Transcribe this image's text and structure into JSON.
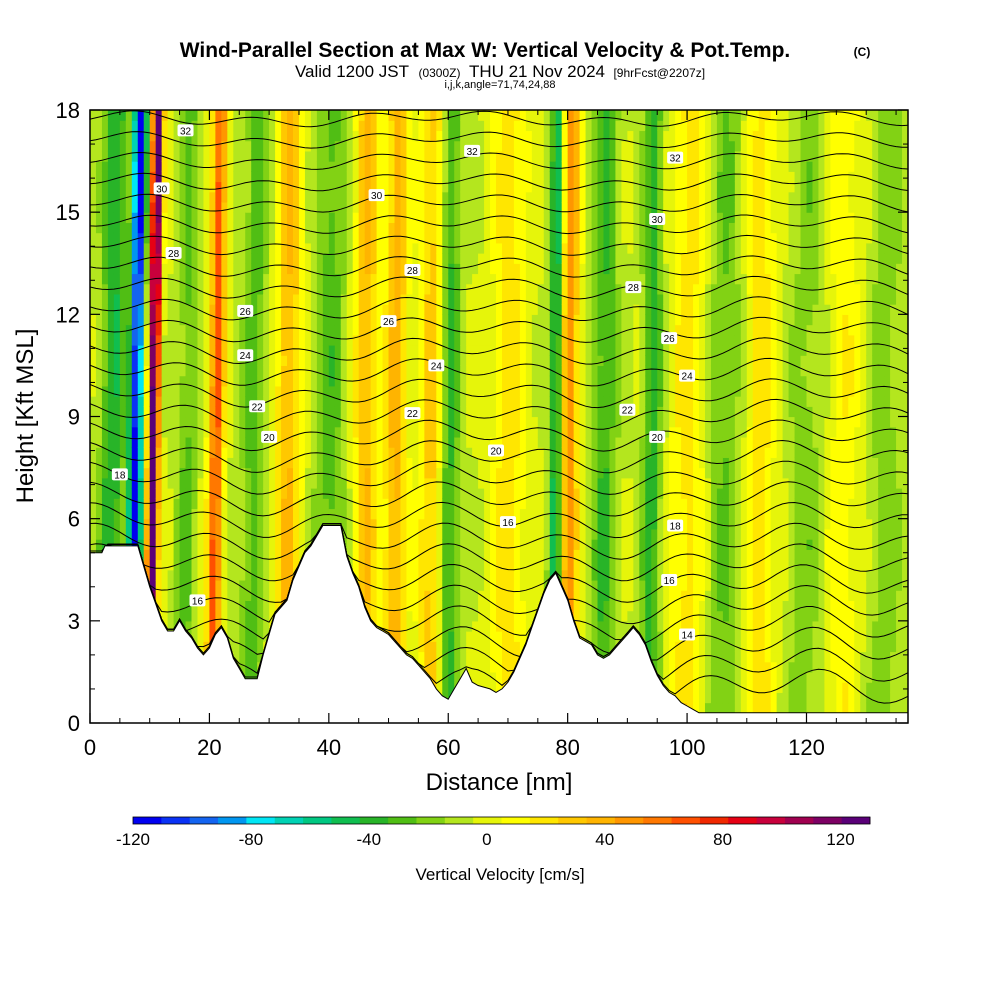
{
  "header": {
    "title": "Wind-Parallel Section at Max W: Vertical Velocity & Pot.Temp.",
    "copyright": "(C)",
    "valid_prefix": "Valid 1200 JST",
    "valid_utc": "(0300Z)",
    "valid_date": "THU 21 Nov 2024",
    "forecast": "[9hrFcst@2207z]",
    "indices": "i,j,k,angle=71,74,24,88"
  },
  "chart_data": {
    "type": "heatmap",
    "xlabel": "Distance [nm]",
    "ylabel": "Height [Kft MSL]",
    "xlim": [
      0,
      137
    ],
    "ylim": [
      0,
      18
    ],
    "x_ticks": [
      0,
      20,
      40,
      60,
      80,
      100,
      120
    ],
    "y_ticks": [
      0,
      3,
      6,
      9,
      12,
      15,
      18
    ],
    "colorbar": {
      "label": "Vertical Velocity [cm/s]",
      "range": [
        -120,
        130
      ],
      "step": 10,
      "ticks": [
        -120,
        -80,
        -40,
        0,
        40,
        80,
        120
      ],
      "colors": [
        "#0000f0",
        "#0a32f5",
        "#1464f0",
        "#0096f0",
        "#00e6f5",
        "#00d2b4",
        "#00c882",
        "#10be50",
        "#28b428",
        "#50be14",
        "#82d214",
        "#b4e61e",
        "#e6f50a",
        "#ffff00",
        "#ffe600",
        "#ffc800",
        "#ffb400",
        "#ff9600",
        "#ff7800",
        "#ff5000",
        "#f02800",
        "#e60014",
        "#c8003c",
        "#a00050",
        "#7d0064",
        "#5a0078"
      ]
    },
    "terrain": [
      [
        0,
        5.0
      ],
      [
        2,
        5.0
      ],
      [
        2.5,
        5.2
      ],
      [
        8,
        5.2
      ],
      [
        9,
        4.6
      ],
      [
        10,
        4.0
      ],
      [
        11,
        3.5
      ],
      [
        12,
        3.0
      ],
      [
        13,
        2.7
      ],
      [
        14,
        2.7
      ],
      [
        15,
        3.0
      ],
      [
        16,
        2.7
      ],
      [
        17,
        2.5
      ],
      [
        18,
        2.2
      ],
      [
        19,
        2.0
      ],
      [
        20,
        2.2
      ],
      [
        21,
        2.6
      ],
      [
        22,
        2.8
      ],
      [
        23,
        2.5
      ],
      [
        24,
        1.9
      ],
      [
        25,
        1.6
      ],
      [
        26,
        1.3
      ],
      [
        28,
        1.3
      ],
      [
        29,
        2.0
      ],
      [
        30,
        2.6
      ],
      [
        31,
        3.2
      ],
      [
        32,
        3.4
      ],
      [
        33,
        3.6
      ],
      [
        34,
        4.2
      ],
      [
        35,
        4.6
      ],
      [
        36,
        5.0
      ],
      [
        37,
        5.2
      ],
      [
        38,
        5.5
      ],
      [
        39,
        5.8
      ],
      [
        42,
        5.8
      ],
      [
        43,
        4.9
      ],
      [
        44,
        4.4
      ],
      [
        45,
        4.0
      ],
      [
        46,
        3.4
      ],
      [
        47,
        3.0
      ],
      [
        48,
        2.8
      ],
      [
        49,
        2.7
      ],
      [
        50,
        2.6
      ],
      [
        51,
        2.4
      ],
      [
        52,
        2.2
      ],
      [
        53,
        2.0
      ],
      [
        54,
        1.9
      ],
      [
        55,
        1.7
      ],
      [
        56,
        1.5
      ],
      [
        57,
        1.3
      ],
      [
        58,
        1.0
      ],
      [
        59,
        0.8
      ],
      [
        60,
        0.7
      ],
      [
        61,
        1.0
      ],
      [
        62,
        1.3
      ],
      [
        63,
        1.6
      ],
      [
        64,
        1.2
      ],
      [
        65,
        1.1
      ],
      [
        67,
        1.0
      ],
      [
        68,
        0.9
      ],
      [
        69,
        1.0
      ],
      [
        70,
        1.2
      ],
      [
        71,
        1.5
      ],
      [
        72,
        1.9
      ],
      [
        73,
        2.3
      ],
      [
        74,
        2.8
      ],
      [
        75,
        3.3
      ],
      [
        76,
        3.8
      ],
      [
        77,
        4.2
      ],
      [
        78,
        4.4
      ],
      [
        79,
        4.0
      ],
      [
        80,
        3.6
      ],
      [
        81,
        3.0
      ],
      [
        82,
        2.5
      ],
      [
        83,
        2.4
      ],
      [
        84,
        2.3
      ],
      [
        85,
        2.0
      ],
      [
        86,
        1.9
      ],
      [
        87,
        2.0
      ],
      [
        88,
        2.2
      ],
      [
        89,
        2.4
      ],
      [
        90,
        2.6
      ],
      [
        91,
        2.8
      ],
      [
        92,
        2.6
      ],
      [
        93,
        2.3
      ],
      [
        94,
        1.8
      ],
      [
        95,
        1.4
      ],
      [
        96,
        1.1
      ],
      [
        97,
        0.9
      ],
      [
        98,
        0.8
      ],
      [
        99,
        0.6
      ],
      [
        100,
        0.5
      ],
      [
        101,
        0.4
      ],
      [
        102,
        0.3
      ],
      [
        137,
        0.3
      ]
    ],
    "theta_contour_labels": [
      {
        "text": "32",
        "x": 16,
        "y": 17.4
      },
      {
        "text": "32",
        "x": 64,
        "y": 16.8
      },
      {
        "text": "32",
        "x": 98,
        "y": 16.6
      },
      {
        "text": "30",
        "x": 12,
        "y": 15.7
      },
      {
        "text": "30",
        "x": 48,
        "y": 15.5
      },
      {
        "text": "30",
        "x": 95,
        "y": 14.8
      },
      {
        "text": "28",
        "x": 14,
        "y": 13.8
      },
      {
        "text": "28",
        "x": 54,
        "y": 13.3
      },
      {
        "text": "28",
        "x": 91,
        "y": 12.8
      },
      {
        "text": "26",
        "x": 26,
        "y": 12.1
      },
      {
        "text": "26",
        "x": 50,
        "y": 11.8
      },
      {
        "text": "26",
        "x": 97,
        "y": 11.3
      },
      {
        "text": "24",
        "x": 26,
        "y": 10.8
      },
      {
        "text": "24",
        "x": 58,
        "y": 10.5
      },
      {
        "text": "24",
        "x": 100,
        "y": 10.2
      },
      {
        "text": "22",
        "x": 28,
        "y": 9.3
      },
      {
        "text": "22",
        "x": 54,
        "y": 9.1
      },
      {
        "text": "22",
        "x": 90,
        "y": 9.2
      },
      {
        "text": "20",
        "x": 30,
        "y": 8.4
      },
      {
        "text": "20",
        "x": 68,
        "y": 8.0
      },
      {
        "text": "20",
        "x": 95,
        "y": 8.4
      },
      {
        "text": "18",
        "x": 5,
        "y": 7.3
      },
      {
        "text": "16",
        "x": 70,
        "y": 5.9
      },
      {
        "text": "18",
        "x": 98,
        "y": 5.8
      },
      {
        "text": "16",
        "x": 18,
        "y": 3.6
      },
      {
        "text": "16",
        "x": 97,
        "y": 4.2
      },
      {
        "text": "14",
        "x": 100,
        "y": 2.6
      }
    ]
  }
}
